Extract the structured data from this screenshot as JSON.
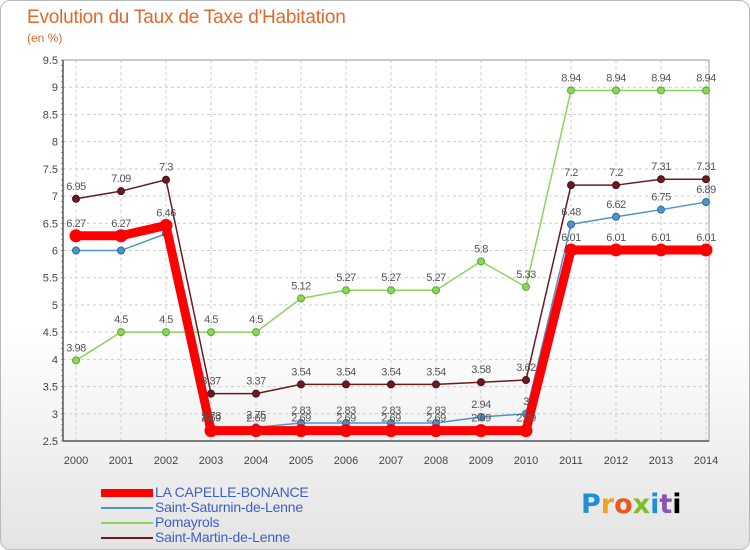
{
  "title": "Evolution du Taux de Taxe d'Habitation",
  "subtitle": "(en %)",
  "logo": [
    "P",
    "r",
    "o",
    "x",
    "i",
    "t",
    "i"
  ],
  "chart_data": {
    "type": "line",
    "x": [
      "2000",
      "2001",
      "2002",
      "2003",
      "2004",
      "2005",
      "2006",
      "2007",
      "2008",
      "2009",
      "2010",
      "2011",
      "2012",
      "2013",
      "2014"
    ],
    "ylim": [
      2.5,
      9.5
    ],
    "y_ticks": [
      "2.5",
      "3",
      "3.5",
      "4",
      "4.5",
      "5",
      "5.5",
      "6",
      "6.5",
      "7",
      "7.5",
      "8",
      "8.5",
      "9",
      "9.5"
    ],
    "grid": true,
    "legend_position": "bottom-left",
    "series": [
      {
        "name": "LA CAPELLE-BONANCE",
        "color": "#ff0000",
        "values": [
          6.27,
          6.27,
          6.46,
          2.69,
          2.69,
          2.69,
          2.69,
          2.69,
          2.69,
          2.69,
          2.69,
          6.01,
          6.01,
          6.01,
          6.01
        ],
        "labels": [
          "6.27",
          "6.27",
          "6.46",
          "2.69",
          "2.69",
          "2.69",
          "2.69",
          "2.69",
          "2.69",
          "2.69",
          "2.69",
          "6.01",
          "6.01",
          "6.01",
          "6.01"
        ]
      },
      {
        "name": "Saint-Saturnin-de-Lenne",
        "color": "#4f94c8",
        "values": [
          6.0,
          6.0,
          6.31,
          2.73,
          2.75,
          2.83,
          2.83,
          2.83,
          2.83,
          2.94,
          3.0,
          6.48,
          6.62,
          6.75,
          6.89
        ],
        "labels": [
          "",
          "",
          "",
          "2.73",
          "2.75",
          "2.83",
          "2.83",
          "2.83",
          "2.83",
          "2.94",
          "3",
          "6.48",
          "6.62",
          "6.75",
          "6.89"
        ]
      },
      {
        "name": "Pomayrols",
        "color": "#8cd45a",
        "values": [
          3.98,
          4.5,
          4.5,
          4.5,
          4.5,
          5.12,
          5.27,
          5.27,
          5.27,
          5.8,
          5.33,
          8.94,
          8.94,
          8.94,
          8.94
        ],
        "labels": [
          "3.98",
          "4.5",
          "4.5",
          "4.5",
          "4.5",
          "5.12",
          "5.27",
          "5.27",
          "5.27",
          "5.8",
          "5.33",
          "8.94",
          "8.94",
          "8.94",
          "8.94"
        ]
      },
      {
        "name": "Saint-Martin-de-Lenne",
        "color": "#6b1a22",
        "values": [
          6.95,
          7.09,
          7.3,
          3.37,
          3.37,
          3.54,
          3.54,
          3.54,
          3.54,
          3.58,
          3.62,
          7.2,
          7.2,
          7.31,
          7.31
        ],
        "labels": [
          "6.95",
          "7.09",
          "7.3",
          "3.37",
          "3.37",
          "3.54",
          "3.54",
          "3.54",
          "3.54",
          "3.58",
          "3.62",
          "7.2",
          "7.2",
          "7.31",
          "7.31"
        ]
      }
    ]
  }
}
